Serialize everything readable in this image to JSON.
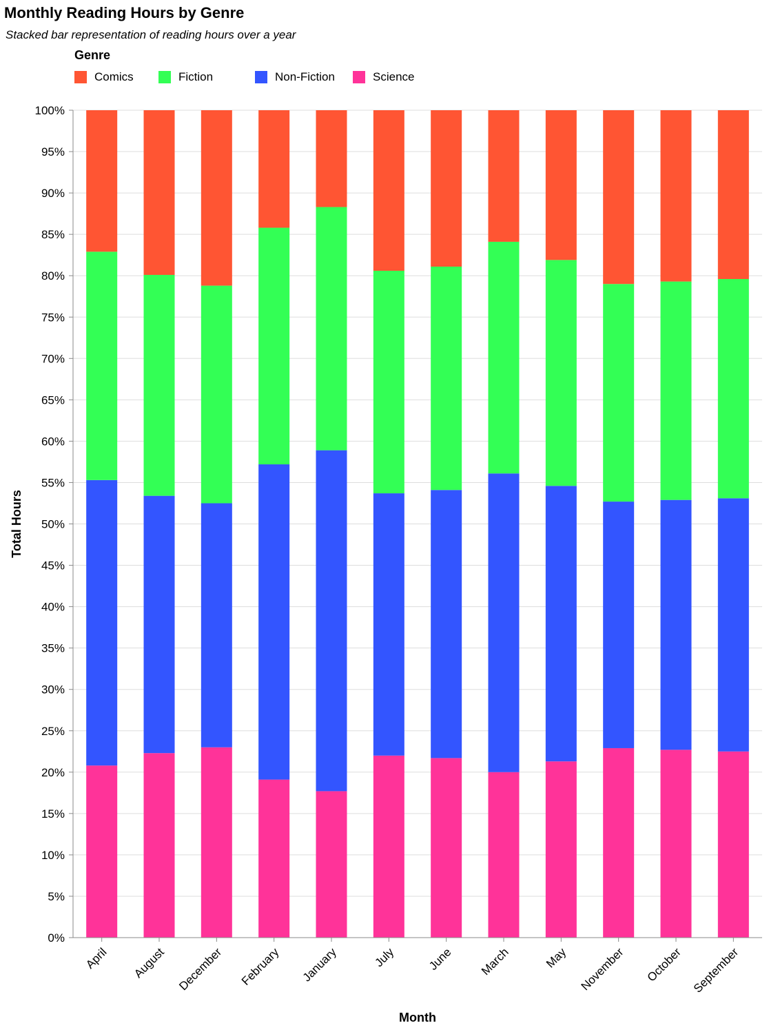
{
  "chart_data": {
    "type": "bar",
    "stacked": true,
    "normalized": true,
    "title": "Monthly Reading Hours by Genre",
    "subtitle": "Stacked bar representation of reading hours over a year",
    "xlabel": "Month",
    "ylabel": "Total Hours",
    "legend_title": "Genre",
    "legend_position": "top-left",
    "grid": true,
    "ylim": [
      0,
      100
    ],
    "yticks": [
      "0%",
      "5%",
      "10%",
      "15%",
      "20%",
      "25%",
      "30%",
      "35%",
      "40%",
      "45%",
      "50%",
      "55%",
      "60%",
      "65%",
      "70%",
      "75%",
      "80%",
      "85%",
      "90%",
      "95%",
      "100%"
    ],
    "categories": [
      "April",
      "August",
      "December",
      "February",
      "January",
      "July",
      "June",
      "March",
      "May",
      "November",
      "October",
      "September"
    ],
    "series": [
      {
        "name": "Science",
        "color": "#ff3399",
        "values": [
          20.8,
          22.3,
          23.0,
          19.1,
          17.7,
          22.0,
          21.7,
          20.0,
          21.3,
          22.9,
          22.7,
          22.5
        ]
      },
      {
        "name": "Non-Fiction",
        "color": "#3355ff",
        "values": [
          34.5,
          31.1,
          29.5,
          38.1,
          41.2,
          31.7,
          32.4,
          36.1,
          33.3,
          29.8,
          30.2,
          30.6
        ]
      },
      {
        "name": "Fiction",
        "color": "#33ff55",
        "values": [
          27.6,
          26.7,
          26.3,
          28.6,
          29.4,
          26.9,
          27.0,
          28.0,
          27.3,
          26.3,
          26.4,
          26.5
        ]
      },
      {
        "name": "Comics",
        "color": "#ff5533",
        "values": [
          17.1,
          19.9,
          21.2,
          14.2,
          11.7,
          19.4,
          18.9,
          15.9,
          18.1,
          21.0,
          20.7,
          20.4
        ]
      }
    ],
    "legend_order": [
      "Comics",
      "Fiction",
      "Non-Fiction",
      "Science"
    ]
  }
}
